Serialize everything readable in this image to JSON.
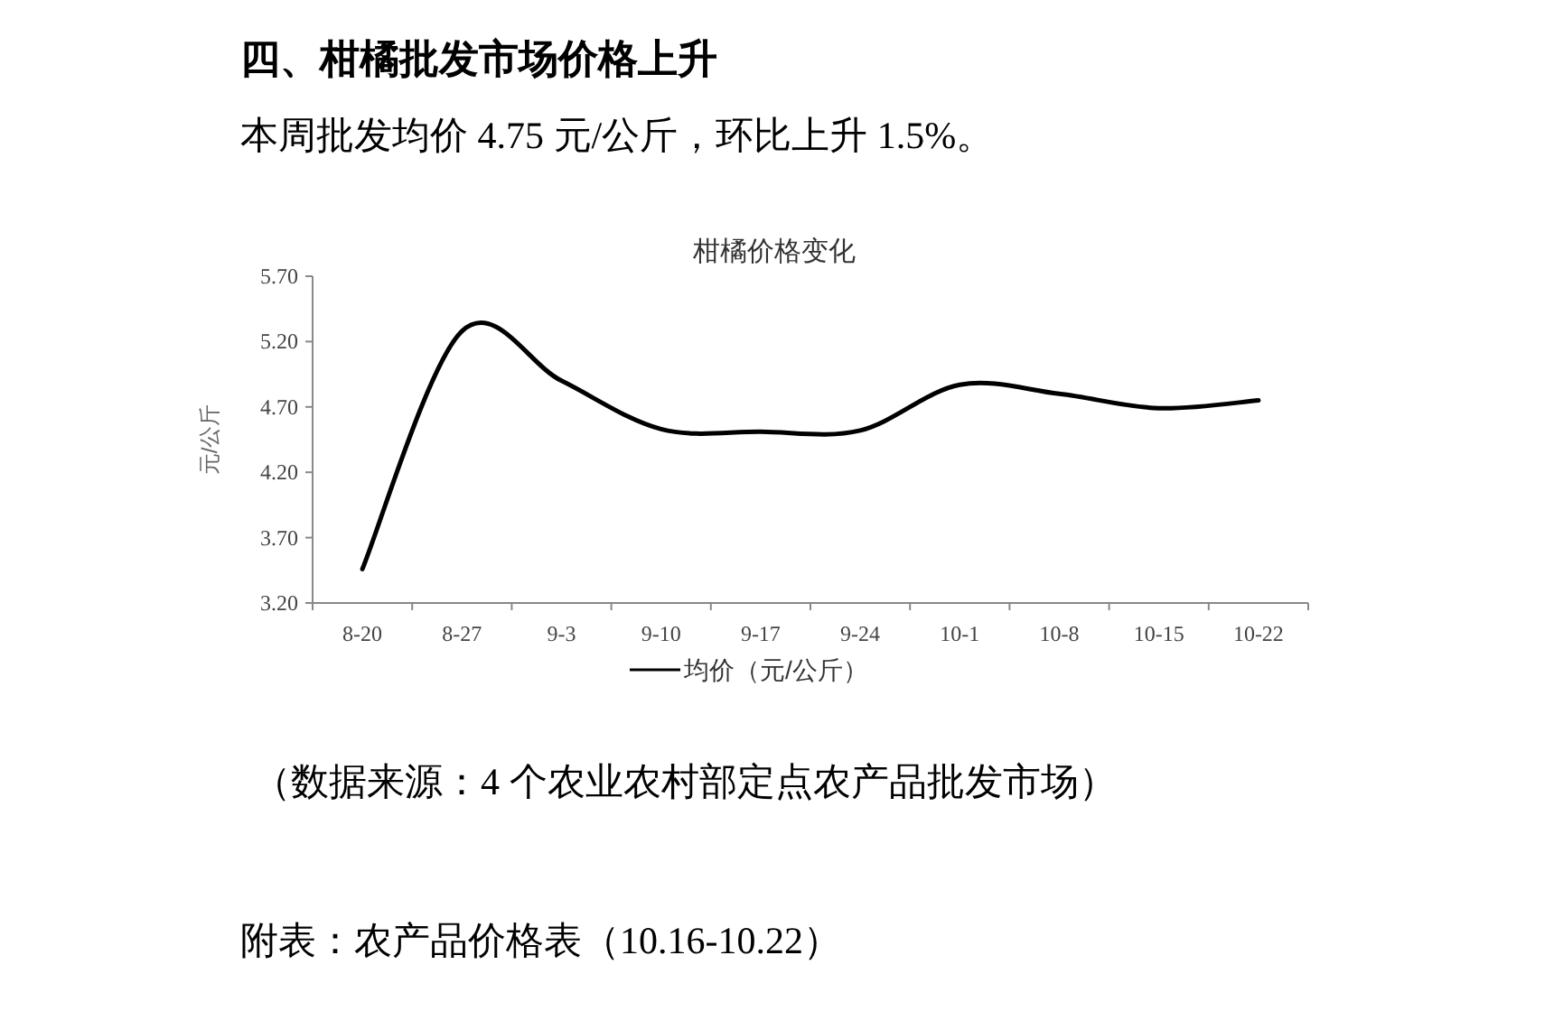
{
  "chart_data": {
    "type": "line",
    "title": "柑橘价格变化",
    "ylabel": "元/公斤",
    "categories": [
      "8-20",
      "8-27",
      "9-3",
      "9-10",
      "9-17",
      "9-24",
      "10-1",
      "10-8",
      "10-15",
      "10-22"
    ],
    "series": [
      {
        "name": "均价（元/公斤）",
        "color": "#000000",
        "values": [
          3.46,
          5.28,
          4.9,
          4.53,
          4.51,
          4.52,
          4.87,
          4.8,
          4.69,
          4.75
        ]
      }
    ],
    "ylim": [
      3.2,
      5.7
    ],
    "yticks": [
      {
        "value": 3.2,
        "label": "3.20"
      },
      {
        "value": 3.7,
        "label": "3.70"
      },
      {
        "value": 4.2,
        "label": "4.20"
      },
      {
        "value": 4.7,
        "label": "4.70"
      },
      {
        "value": 5.2,
        "label": "5.20"
      },
      {
        "value": 5.7,
        "label": "5.70"
      }
    ],
    "legend": "bottom",
    "grid": false,
    "marker": "none",
    "line_style": "solid",
    "annotations": [
      "四、柑橘批发市场价格上升",
      "本周批发均价 4.75 元/公斤，环比上升 1.5%。",
      "（数据来源：4 个农业农村部定点农产品批发市场）",
      "附表：农产品价格表（10.16-10.22）"
    ]
  }
}
